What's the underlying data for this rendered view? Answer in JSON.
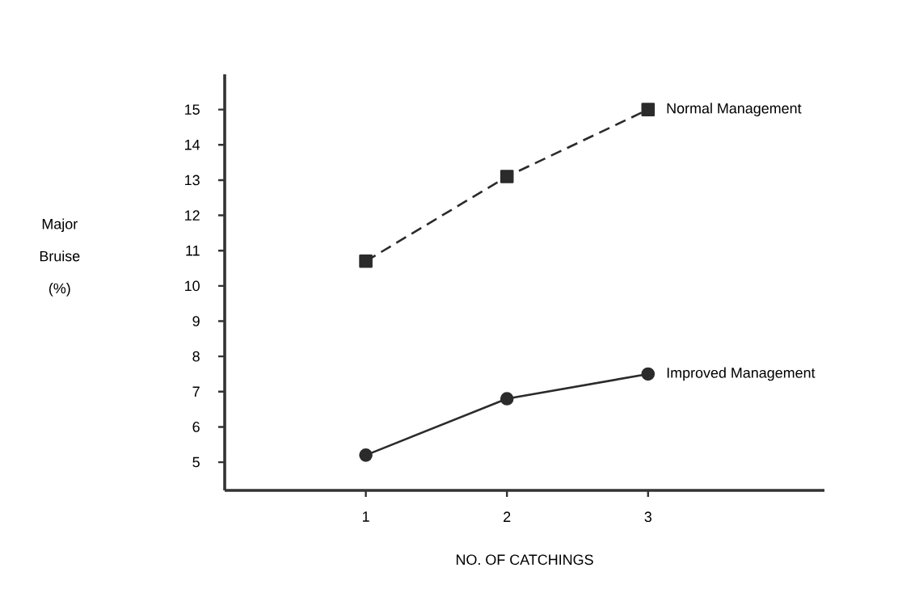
{
  "chart_data": {
    "type": "line",
    "xlabel": "NO. OF CATCHINGS",
    "ylabel": "Major Bruise (%)",
    "x": [
      1,
      2,
      3
    ],
    "xlim": [
      0,
      4.25
    ],
    "xticks": [
      1,
      2,
      3
    ],
    "ylim": [
      4.2,
      16
    ],
    "yticks": [
      5,
      6,
      7,
      8,
      9,
      10,
      11,
      12,
      13,
      14,
      15
    ],
    "grid": false,
    "series": [
      {
        "name": "Normal Management",
        "color": "#2b2b2b",
        "values": [
          10.7,
          13.1,
          15
        ],
        "marker": "square",
        "line_style": "dashed"
      },
      {
        "name": "Improved Management",
        "color": "#2b2b2b",
        "values": [
          5.2,
          6.8,
          7.5
        ],
        "marker": "circle",
        "line_style": "solid"
      }
    ]
  }
}
